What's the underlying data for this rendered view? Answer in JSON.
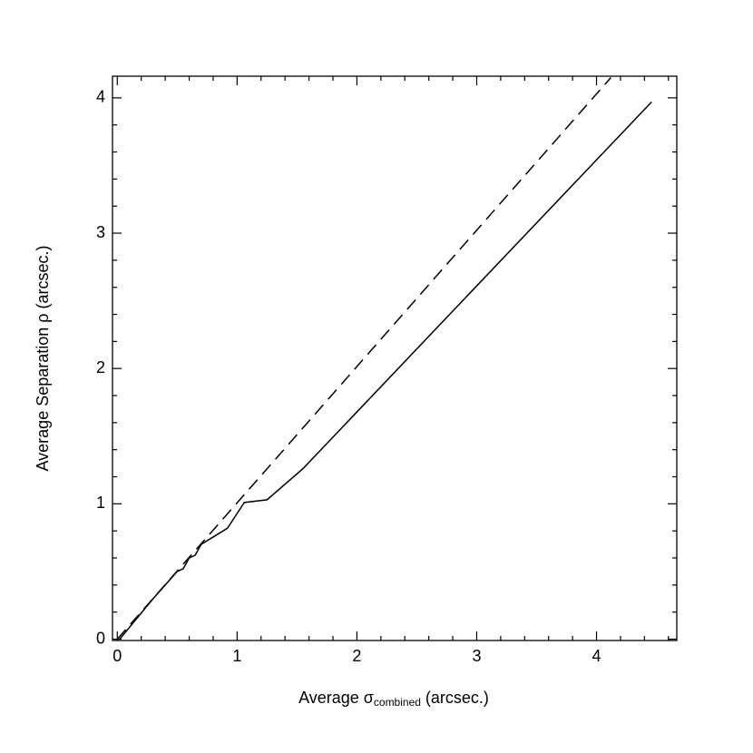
{
  "chart_data": {
    "type": "line",
    "xlabel": {
      "text": "Average σ",
      "subscript": "combined",
      "suffix": " (arcsec.)"
    },
    "ylabel": "Average Separation ρ (arcsec.)",
    "xlim": [
      -0.04,
      4.67
    ],
    "ylim": [
      -0.01,
      4.16
    ],
    "xticks": [
      0,
      1,
      2,
      3,
      4
    ],
    "yticks": [
      0,
      1,
      2,
      3,
      4
    ],
    "xminorticks": [
      0.2,
      0.4,
      0.6,
      0.8,
      1.2,
      1.4,
      1.6,
      1.8,
      2.2,
      2.4,
      2.6,
      2.8,
      3.2,
      3.4,
      3.6,
      3.8,
      4.2,
      4.4,
      4.6
    ],
    "yminorticks": [
      0.2,
      0.4,
      0.6,
      0.8,
      1.2,
      1.4,
      1.6,
      1.8,
      2.2,
      2.4,
      2.6,
      2.8,
      3.2,
      3.4,
      3.6,
      3.8
    ],
    "series": [
      {
        "style": "solid",
        "color": "#000000",
        "x": [
          0.02,
          0.3,
          0.45,
          0.5,
          0.55,
          0.6,
          0.65,
          0.7,
          0.92,
          1.06,
          1.25,
          1.55,
          4.46
        ],
        "values": [
          0.0,
          0.3,
          0.45,
          0.5,
          0.52,
          0.6,
          0.62,
          0.7,
          0.82,
          1.01,
          1.03,
          1.26,
          3.97
        ]
      },
      {
        "style": "dashed",
        "color": "#000000",
        "x": [
          0.0,
          4.12
        ],
        "values": [
          0.0,
          4.15
        ]
      }
    ]
  }
}
